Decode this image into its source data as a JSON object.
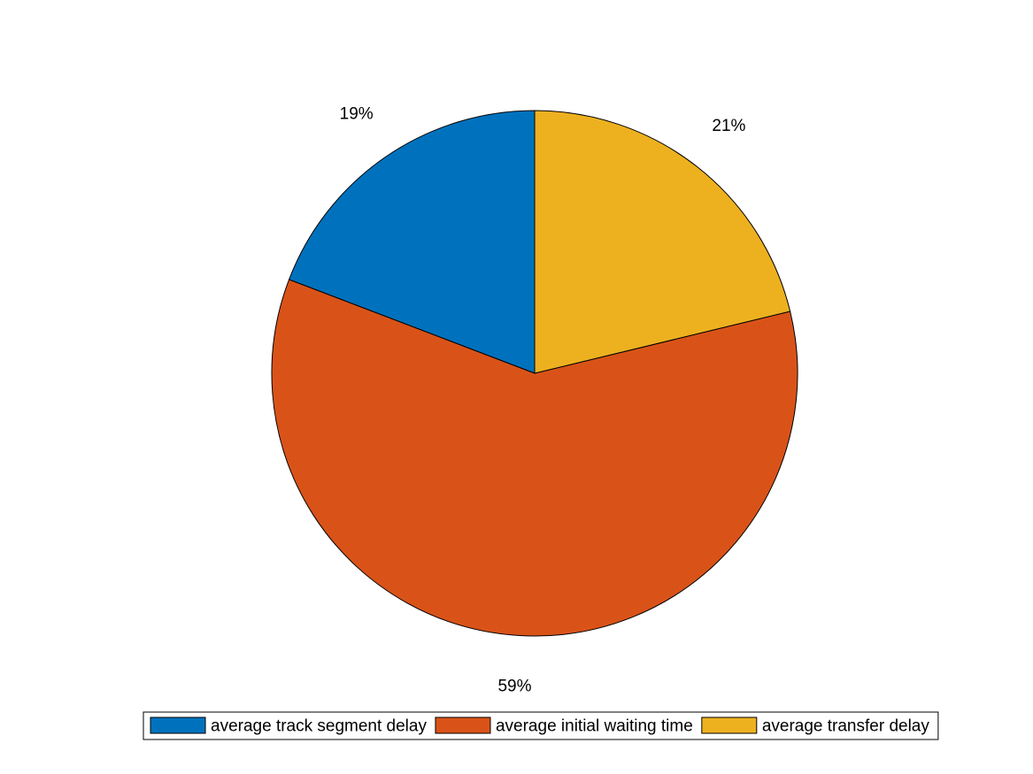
{
  "chart_data": {
    "type": "pie",
    "categories": [
      "average track segment delay",
      "average initial waiting time",
      "average transfer delay"
    ],
    "values": [
      19,
      59,
      21
    ],
    "value_labels": [
      "19%",
      "59%",
      "21%"
    ],
    "colors": [
      "#0072bd",
      "#d95319",
      "#edb120"
    ],
    "legend": "bottom"
  }
}
